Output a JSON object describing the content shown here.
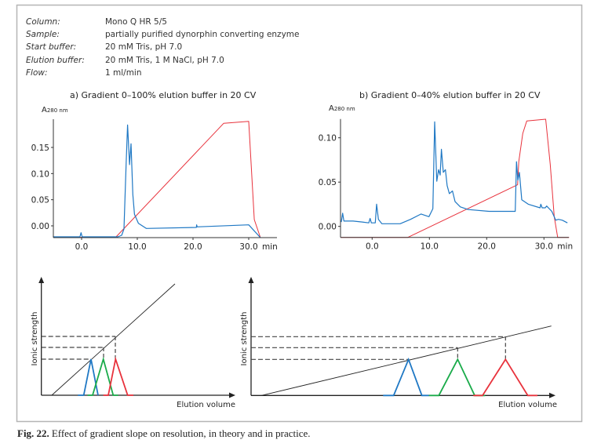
{
  "info": [
    {
      "label": "Column:",
      "value": "Mono Q HR 5/5"
    },
    {
      "label": "Sample:",
      "value": "partially purified dynorphin converting enzyme"
    },
    {
      "label": "Start buffer:",
      "value": "20 mM Tris, pH 7.0"
    },
    {
      "label": "Elution buffer:",
      "value": "20 mM Tris, 1 M NaCl, pH 7.0"
    },
    {
      "label": "Flow:",
      "value": "1 ml/min"
    }
  ],
  "caption": {
    "number": "Fig. 22.",
    "text": "Effect of gradient slope on resolution, in theory and in practice."
  },
  "chart_data": [
    {
      "type": "line",
      "title": "a) Gradient 0–100% elution buffer in 20 CV",
      "ylabel_main": "A",
      "ylabel_sub": "280 nm",
      "xunit": "min",
      "xlim": [
        -5,
        35
      ],
      "ylim": [
        -0.0225,
        0.2
      ],
      "xticks": [
        {
          "v": 0,
          "label": "0.0"
        },
        {
          "v": 10,
          "label": "10.0"
        },
        {
          "v": 20,
          "label": "20.0"
        },
        {
          "v": 30,
          "label": "30.0"
        }
      ],
      "yticks": [
        {
          "v": 0.15,
          "label": "0.15"
        },
        {
          "v": 0.1,
          "label": "0.10"
        },
        {
          "v": 0.05,
          "label": "0.05"
        },
        {
          "v": 0.0,
          "label": "0.00"
        }
      ],
      "series": [
        {
          "color": "#e8323c",
          "points": [
            [
              -5.07,
              -0.0225
            ],
            [
              6.2,
              -0.021
            ],
            [
              25.5,
              0.196
            ],
            [
              30.0,
              0.2
            ],
            [
              31.0,
              0.012
            ],
            [
              32.1,
              -0.0225
            ],
            [
              33.7,
              -0.0225
            ]
          ]
        },
        {
          "color": "#1f78c4",
          "points": [
            [
              -5.07,
              -0.021
            ],
            [
              -0.3,
              -0.021
            ],
            [
              -0.1,
              -0.013
            ],
            [
              0.1,
              -0.021
            ],
            [
              6.5,
              -0.021
            ],
            [
              7.2,
              -0.018
            ],
            [
              7.6,
              -0.006
            ],
            [
              8.0,
              0.12
            ],
            [
              8.26,
              0.193
            ],
            [
              8.6,
              0.117
            ],
            [
              8.87,
              0.157
            ],
            [
              9.2,
              0.06
            ],
            [
              9.5,
              0.022
            ],
            [
              10.2,
              0.005
            ],
            [
              11.6,
              -0.005
            ],
            [
              20.6,
              -0.003
            ],
            [
              20.65,
              0.002
            ],
            [
              20.75,
              -0.002
            ],
            [
              30.0,
              0.002
            ],
            [
              32.1,
              -0.0225
            ]
          ]
        }
      ]
    },
    {
      "type": "line",
      "title": "b) Gradient 0–40% elution buffer in 20 CV",
      "ylabel_main": "A",
      "ylabel_sub": "280 nm",
      "xunit": "min",
      "xlim": [
        -5.5,
        34.4
      ],
      "ylim": [
        -0.0125,
        0.121
      ],
      "xticks": [
        {
          "v": 0,
          "label": "0.0"
        },
        {
          "v": 10,
          "label": "10.0"
        },
        {
          "v": 20,
          "label": "20.0"
        },
        {
          "v": 30,
          "label": "30.0"
        }
      ],
      "yticks": [
        {
          "v": 0.1,
          "label": "0.10"
        },
        {
          "v": 0.05,
          "label": "0.05"
        },
        {
          "v": 0.0,
          "label": "0.00"
        }
      ],
      "series": [
        {
          "color": "#e8323c",
          "points": [
            [
              -5.5,
              -0.0125
            ],
            [
              6.2,
              -0.0125
            ],
            [
              25.4,
              0.047
            ],
            [
              25.6,
              0.073
            ],
            [
              26.3,
              0.105
            ],
            [
              27.0,
              0.119
            ],
            [
              30.3,
              0.121
            ],
            [
              31.1,
              0.07
            ],
            [
              31.8,
              0.011
            ],
            [
              32.4,
              -0.0125
            ],
            [
              34.4,
              -0.0125
            ]
          ]
        },
        {
          "color": "#1f78c4",
          "points": [
            [
              -5.38,
              0.005
            ],
            [
              -5.15,
              0.015
            ],
            [
              -4.93,
              0.006
            ],
            [
              -3.33,
              0.006
            ],
            [
              -1.73,
              0.005
            ],
            [
              -0.59,
              0.004
            ],
            [
              -0.36,
              0.009
            ],
            [
              -0.14,
              0.004
            ],
            [
              0.55,
              0.004
            ],
            [
              0.78,
              0.025
            ],
            [
              1.1,
              0.008
            ],
            [
              1.7,
              0.003
            ],
            [
              4.89,
              0.003
            ],
            [
              6.71,
              0.008
            ],
            [
              8.55,
              0.014
            ],
            [
              9.92,
              0.011
            ],
            [
              10.6,
              0.02
            ],
            [
              10.92,
              0.118
            ],
            [
              11.29,
              0.051
            ],
            [
              11.6,
              0.064
            ],
            [
              11.88,
              0.058
            ],
            [
              12.1,
              0.087
            ],
            [
              12.42,
              0.061
            ],
            [
              12.79,
              0.064
            ],
            [
              13.1,
              0.046
            ],
            [
              13.48,
              0.037
            ],
            [
              14.03,
              0.04
            ],
            [
              14.48,
              0.028
            ],
            [
              15.4,
              0.022
            ],
            [
              16.77,
              0.019
            ],
            [
              20.41,
              0.017
            ],
            [
              24.99,
              0.017
            ],
            [
              25.2,
              0.073
            ],
            [
              25.44,
              0.052
            ],
            [
              25.71,
              0.061
            ],
            [
              26.12,
              0.03
            ],
            [
              27.26,
              0.025
            ],
            [
              29.32,
              0.021
            ],
            [
              29.45,
              0.025
            ],
            [
              29.68,
              0.021
            ],
            [
              30.23,
              0.021
            ],
            [
              30.47,
              0.023
            ],
            [
              31.37,
              0.017
            ],
            [
              32.05,
              0.007
            ],
            [
              32.52,
              0.008
            ],
            [
              33.2,
              0.007
            ],
            [
              34.1,
              0.004
            ]
          ]
        }
      ]
    }
  ],
  "diagrams": [
    {
      "ylabel": "Ionic strength",
      "xlabel": "Elution volume",
      "peak_colors": [
        "#1f78c4",
        "#1aab4a",
        "#e8323c"
      ]
    },
    {
      "ylabel": "Ionic strength",
      "xlabel": "Elution volume",
      "peak_colors": [
        "#1f78c4",
        "#1aab4a",
        "#e8323c"
      ]
    }
  ]
}
